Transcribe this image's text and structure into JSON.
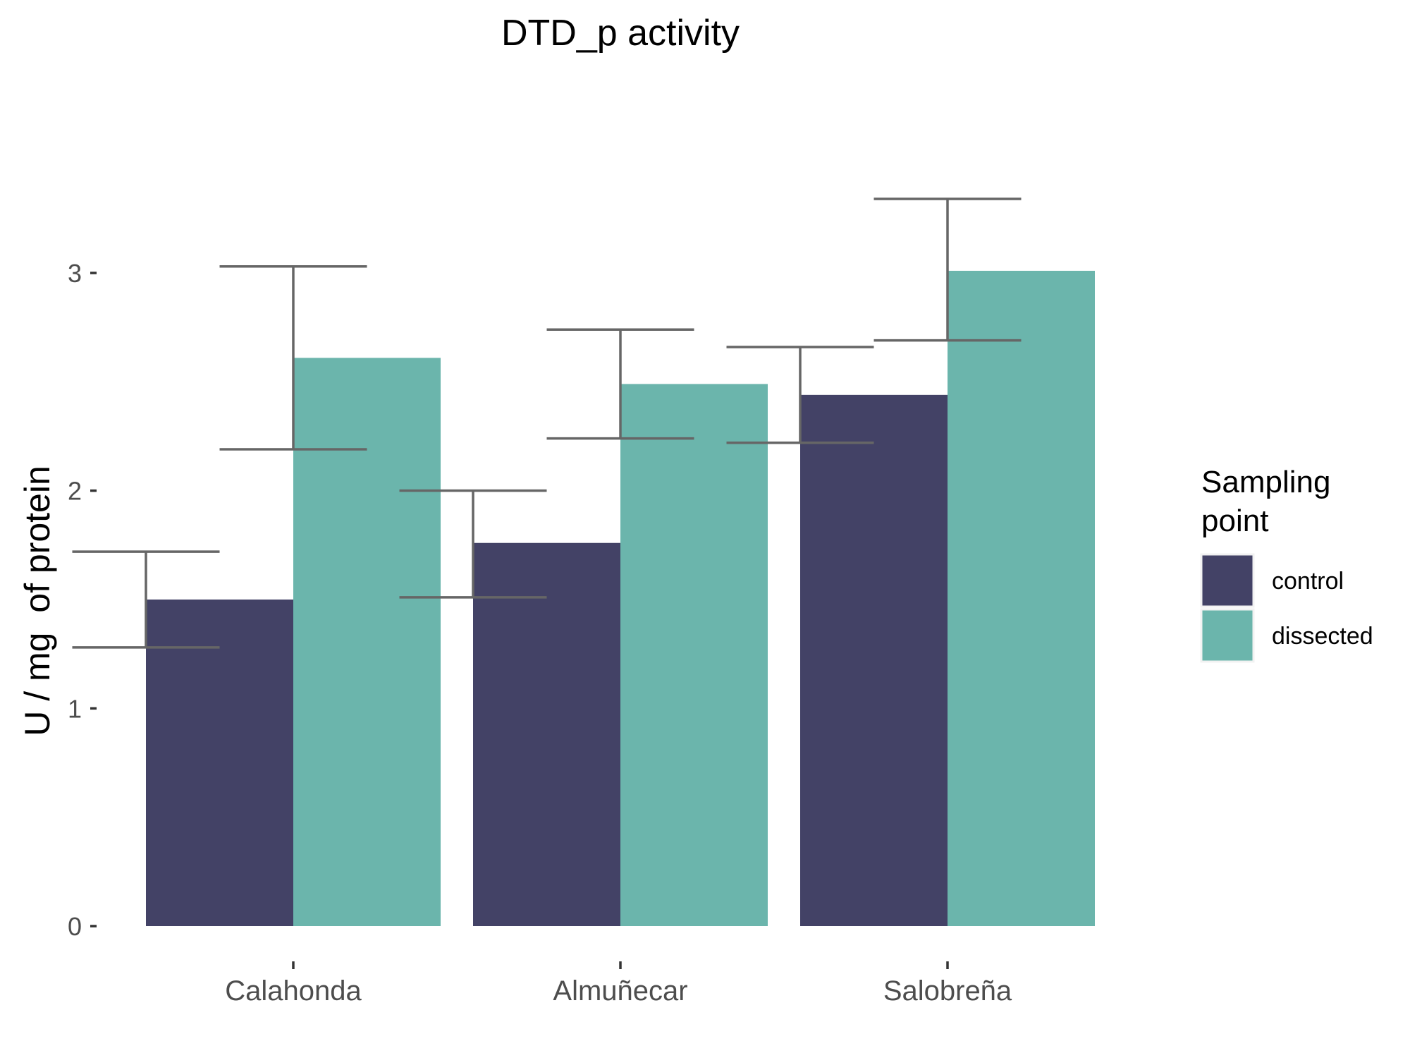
{
  "chart_data": {
    "type": "bar",
    "title": "DTD_p activity",
    "xlabel": "",
    "ylabel": "U / mg  of protein",
    "categories": [
      "Calahonda",
      "Almuñecar",
      "Salobreña"
    ],
    "series": [
      {
        "name": "control",
        "color": "#434266",
        "values": [
          1.5,
          1.76,
          2.44
        ],
        "error_lower": [
          1.28,
          1.51,
          2.22
        ],
        "error_upper": [
          1.72,
          2.0,
          2.66
        ]
      },
      {
        "name": "dissected",
        "color": "#6bb5ac",
        "values": [
          2.61,
          2.49,
          3.01
        ],
        "error_lower": [
          2.19,
          2.24,
          2.69
        ],
        "error_upper": [
          3.03,
          2.74,
          3.34
        ]
      }
    ],
    "y_ticks": [
      0,
      1,
      2,
      3
    ],
    "ylim": [
      -0.07,
      3.5
    ],
    "grid": false,
    "legend": {
      "title": "Sampling point",
      "title_lines": [
        "Sampling",
        "point"
      ],
      "position": "right"
    },
    "error_bar_color": "#666666"
  }
}
